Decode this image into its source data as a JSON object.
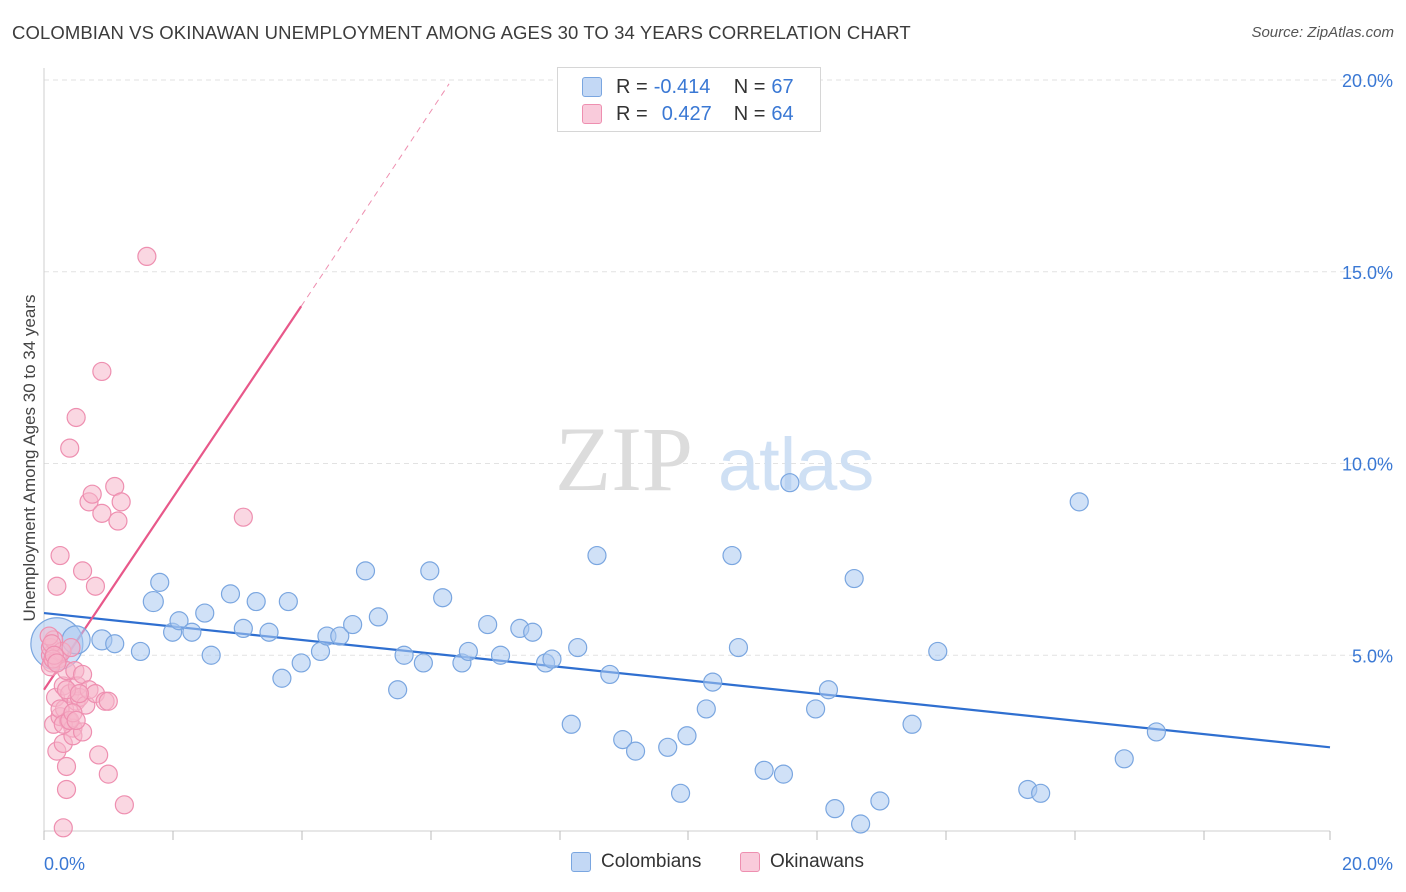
{
  "title": "COLOMBIAN VS OKINAWAN UNEMPLOYMENT AMONG AGES 30 TO 34 YEARS CORRELATION CHART",
  "source": "Source: ZipAtlas.com",
  "watermark": {
    "zip": "ZIP",
    "atlas": "atlas"
  },
  "legend": {
    "colombians": {
      "r_label": "R =",
      "r_value": "-0.414",
      "n_label": "N =",
      "n_value": "67"
    },
    "okinawans": {
      "r_label": "R =",
      "r_value": "0.427",
      "n_label": "N =",
      "n_value": "64"
    }
  },
  "bottom_legend": {
    "colombians": "Colombians",
    "okinawans": "Okinawans"
  },
  "colors": {
    "blue_fill": "#a9c8f0",
    "blue_stroke": "#7aa6e0",
    "blue_line": "#2f6fd0",
    "pink_fill": "#f6b6cb",
    "pink_stroke": "#ee8fb0",
    "pink_line": "#e8588a",
    "axis_text": "#3a78d4",
    "grid": "#e2e2e2"
  },
  "chart_data": {
    "type": "scatter",
    "title": "COLOMBIAN VS OKINAWAN UNEMPLOYMENT AMONG AGES 30 TO 34 YEARS CORRELATION CHART",
    "xlabel": "",
    "ylabel": "Unemployment Among Ages 30 to 34 years",
    "xlim": [
      0,
      20
    ],
    "ylim": [
      0,
      20
    ],
    "x_tick_labels": [
      "0.0%",
      "20.0%"
    ],
    "y_tick_labels": [
      "5.0%",
      "10.0%",
      "15.0%",
      "20.0%"
    ],
    "y_ticks": [
      5,
      10,
      15,
      20
    ],
    "series": [
      {
        "name": "Colombians",
        "r": -0.414,
        "n": 67,
        "trend": {
          "x": [
            0,
            20
          ],
          "y": [
            6.1,
            2.6
          ],
          "style": "solid"
        },
        "points": [
          {
            "x": 0.2,
            "y": 5.3,
            "s": 26
          },
          {
            "x": 0.5,
            "y": 5.4,
            "s": 14
          },
          {
            "x": 0.9,
            "y": 5.4,
            "s": 10
          },
          {
            "x": 1.1,
            "y": 5.3,
            "s": 9
          },
          {
            "x": 1.5,
            "y": 5.1,
            "s": 9
          },
          {
            "x": 1.7,
            "y": 6.4,
            "s": 10
          },
          {
            "x": 1.8,
            "y": 6.9,
            "s": 9
          },
          {
            "x": 2.0,
            "y": 5.6,
            "s": 9
          },
          {
            "x": 2.1,
            "y": 5.9,
            "s": 9
          },
          {
            "x": 2.3,
            "y": 5.6,
            "s": 9
          },
          {
            "x": 2.5,
            "y": 6.1,
            "s": 9
          },
          {
            "x": 2.6,
            "y": 5.0,
            "s": 9
          },
          {
            "x": 2.9,
            "y": 6.6,
            "s": 9
          },
          {
            "x": 3.1,
            "y": 5.7,
            "s": 9
          },
          {
            "x": 3.3,
            "y": 6.4,
            "s": 9
          },
          {
            "x": 3.5,
            "y": 5.6,
            "s": 9
          },
          {
            "x": 3.7,
            "y": 4.4,
            "s": 9
          },
          {
            "x": 3.8,
            "y": 6.4,
            "s": 9
          },
          {
            "x": 4.0,
            "y": 4.8,
            "s": 9
          },
          {
            "x": 4.3,
            "y": 5.1,
            "s": 9
          },
          {
            "x": 4.4,
            "y": 5.5,
            "s": 9
          },
          {
            "x": 4.6,
            "y": 5.5,
            "s": 9
          },
          {
            "x": 4.8,
            "y": 5.8,
            "s": 9
          },
          {
            "x": 5.0,
            "y": 7.2,
            "s": 9
          },
          {
            "x": 5.2,
            "y": 6.0,
            "s": 9
          },
          {
            "x": 5.5,
            "y": 4.1,
            "s": 9
          },
          {
            "x": 5.6,
            "y": 5.0,
            "s": 9
          },
          {
            "x": 5.9,
            "y": 4.8,
            "s": 9
          },
          {
            "x": 6.0,
            "y": 7.2,
            "s": 9
          },
          {
            "x": 6.2,
            "y": 6.5,
            "s": 9
          },
          {
            "x": 6.5,
            "y": 4.8,
            "s": 9
          },
          {
            "x": 6.6,
            "y": 5.1,
            "s": 9
          },
          {
            "x": 6.9,
            "y": 5.8,
            "s": 9
          },
          {
            "x": 7.1,
            "y": 5.0,
            "s": 9
          },
          {
            "x": 7.4,
            "y": 5.7,
            "s": 9
          },
          {
            "x": 7.6,
            "y": 5.6,
            "s": 9
          },
          {
            "x": 7.8,
            "y": 4.8,
            "s": 9
          },
          {
            "x": 7.9,
            "y": 4.9,
            "s": 9
          },
          {
            "x": 8.2,
            "y": 3.2,
            "s": 9
          },
          {
            "x": 8.3,
            "y": 5.2,
            "s": 9
          },
          {
            "x": 8.6,
            "y": 7.6,
            "s": 9
          },
          {
            "x": 8.8,
            "y": 4.5,
            "s": 9
          },
          {
            "x": 9.0,
            "y": 2.8,
            "s": 9
          },
          {
            "x": 9.2,
            "y": 2.5,
            "s": 9
          },
          {
            "x": 9.7,
            "y": 2.6,
            "s": 9
          },
          {
            "x": 9.9,
            "y": 1.4,
            "s": 9
          },
          {
            "x": 10.0,
            "y": 2.9,
            "s": 9
          },
          {
            "x": 10.3,
            "y": 3.6,
            "s": 9
          },
          {
            "x": 10.4,
            "y": 4.3,
            "s": 9
          },
          {
            "x": 10.7,
            "y": 7.6,
            "s": 9
          },
          {
            "x": 10.8,
            "y": 5.2,
            "s": 9
          },
          {
            "x": 11.2,
            "y": 2.0,
            "s": 9
          },
          {
            "x": 11.5,
            "y": 1.9,
            "s": 9
          },
          {
            "x": 11.6,
            "y": 9.5,
            "s": 9
          },
          {
            "x": 12.0,
            "y": 3.6,
            "s": 9
          },
          {
            "x": 12.2,
            "y": 4.1,
            "s": 9
          },
          {
            "x": 12.3,
            "y": 1.0,
            "s": 9
          },
          {
            "x": 12.6,
            "y": 7.0,
            "s": 9
          },
          {
            "x": 12.7,
            "y": 0.6,
            "s": 9
          },
          {
            "x": 13.0,
            "y": 1.2,
            "s": 9
          },
          {
            "x": 13.5,
            "y": 3.2,
            "s": 9
          },
          {
            "x": 13.9,
            "y": 5.1,
            "s": 9
          },
          {
            "x": 15.3,
            "y": 1.5,
            "s": 9
          },
          {
            "x": 15.5,
            "y": 1.4,
            "s": 9
          },
          {
            "x": 16.1,
            "y": 9.0,
            "s": 9
          },
          {
            "x": 16.8,
            "y": 2.3,
            "s": 9
          },
          {
            "x": 17.3,
            "y": 3.0,
            "s": 9
          }
        ]
      },
      {
        "name": "Okinawans",
        "r": 0.427,
        "n": 64,
        "trend": {
          "x": [
            0,
            4.0
          ],
          "y": [
            4.1,
            14.1
          ],
          "style": "solid",
          "extension": {
            "x": [
              4.0,
              6.3
            ],
            "y": [
              14.1,
              19.9
            ],
            "style": "dashed"
          }
        },
        "points": [
          {
            "x": 0.1,
            "y": 5.0,
            "s": 9
          },
          {
            "x": 0.1,
            "y": 5.2,
            "s": 9
          },
          {
            "x": 0.12,
            "y": 4.8,
            "s": 9
          },
          {
            "x": 0.15,
            "y": 5.4,
            "s": 9
          },
          {
            "x": 0.15,
            "y": 3.2,
            "s": 9
          },
          {
            "x": 0.18,
            "y": 3.9,
            "s": 9
          },
          {
            "x": 0.2,
            "y": 6.8,
            "s": 9
          },
          {
            "x": 0.2,
            "y": 2.5,
            "s": 9
          },
          {
            "x": 0.22,
            "y": 4.9,
            "s": 9
          },
          {
            "x": 0.25,
            "y": 7.6,
            "s": 9
          },
          {
            "x": 0.25,
            "y": 3.4,
            "s": 9
          },
          {
            "x": 0.28,
            "y": 5.1,
            "s": 9
          },
          {
            "x": 0.3,
            "y": 4.2,
            "s": 9
          },
          {
            "x": 0.3,
            "y": 2.7,
            "s": 9
          },
          {
            "x": 0.3,
            "y": 0.5,
            "s": 9
          },
          {
            "x": 0.32,
            "y": 3.6,
            "s": 9
          },
          {
            "x": 0.35,
            "y": 4.6,
            "s": 9
          },
          {
            "x": 0.35,
            "y": 2.1,
            "s": 9
          },
          {
            "x": 0.35,
            "y": 1.5,
            "s": 9
          },
          {
            "x": 0.38,
            "y": 3.3,
            "s": 9
          },
          {
            "x": 0.4,
            "y": 4.0,
            "s": 9
          },
          {
            "x": 0.4,
            "y": 10.4,
            "s": 9
          },
          {
            "x": 0.42,
            "y": 5.2,
            "s": 9
          },
          {
            "x": 0.45,
            "y": 3.1,
            "s": 9
          },
          {
            "x": 0.45,
            "y": 2.9,
            "s": 9
          },
          {
            "x": 0.48,
            "y": 4.6,
            "s": 9
          },
          {
            "x": 0.5,
            "y": 11.2,
            "s": 9
          },
          {
            "x": 0.5,
            "y": 3.8,
            "s": 9
          },
          {
            "x": 0.52,
            "y": 4.2,
            "s": 9
          },
          {
            "x": 0.55,
            "y": 3.9,
            "s": 9
          },
          {
            "x": 0.6,
            "y": 7.2,
            "s": 9
          },
          {
            "x": 0.6,
            "y": 3.0,
            "s": 9
          },
          {
            "x": 0.6,
            "y": 4.5,
            "s": 9
          },
          {
            "x": 0.65,
            "y": 3.7,
            "s": 9
          },
          {
            "x": 0.7,
            "y": 4.1,
            "s": 9
          },
          {
            "x": 0.7,
            "y": 9.0,
            "s": 9
          },
          {
            "x": 0.75,
            "y": 9.2,
            "s": 9
          },
          {
            "x": 0.8,
            "y": 6.8,
            "s": 9
          },
          {
            "x": 0.8,
            "y": 4.0,
            "s": 9
          },
          {
            "x": 0.85,
            "y": 2.4,
            "s": 9
          },
          {
            "x": 0.9,
            "y": 12.4,
            "s": 9
          },
          {
            "x": 0.9,
            "y": 8.7,
            "s": 9
          },
          {
            "x": 0.95,
            "y": 3.8,
            "s": 9
          },
          {
            "x": 1.0,
            "y": 1.9,
            "s": 9
          },
          {
            "x": 1.0,
            "y": 3.8,
            "s": 9
          },
          {
            "x": 1.1,
            "y": 9.4,
            "s": 9
          },
          {
            "x": 1.15,
            "y": 8.5,
            "s": 9
          },
          {
            "x": 1.2,
            "y": 9.0,
            "s": 9
          },
          {
            "x": 1.25,
            "y": 1.1,
            "s": 9
          },
          {
            "x": 1.6,
            "y": 15.4,
            "s": 9
          },
          {
            "x": 3.1,
            "y": 8.6,
            "s": 9
          },
          {
            "x": 0.08,
            "y": 5.5,
            "s": 9
          },
          {
            "x": 0.1,
            "y": 4.7,
            "s": 9
          },
          {
            "x": 0.12,
            "y": 5.3,
            "s": 9
          },
          {
            "x": 0.14,
            "y": 4.9,
            "s": 9
          },
          {
            "x": 0.16,
            "y": 5.0,
            "s": 9
          },
          {
            "x": 0.2,
            "y": 4.8,
            "s": 9
          },
          {
            "x": 0.25,
            "y": 3.6,
            "s": 9
          },
          {
            "x": 0.3,
            "y": 3.2,
            "s": 9
          },
          {
            "x": 0.35,
            "y": 4.1,
            "s": 9
          },
          {
            "x": 0.4,
            "y": 3.3,
            "s": 9
          },
          {
            "x": 0.45,
            "y": 3.5,
            "s": 9
          },
          {
            "x": 0.5,
            "y": 3.3,
            "s": 9
          },
          {
            "x": 0.55,
            "y": 4.0,
            "s": 9
          }
        ]
      }
    ]
  }
}
